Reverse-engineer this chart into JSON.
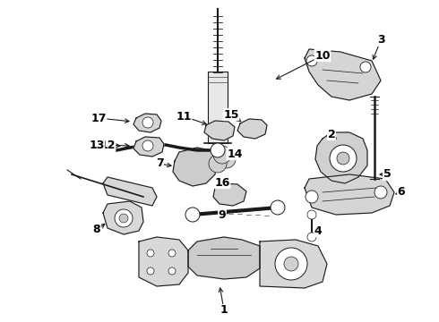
{
  "bg_color": "#ffffff",
  "figsize": [
    4.9,
    3.6
  ],
  "dpi": 100,
  "image_data": "target_placeholder"
}
